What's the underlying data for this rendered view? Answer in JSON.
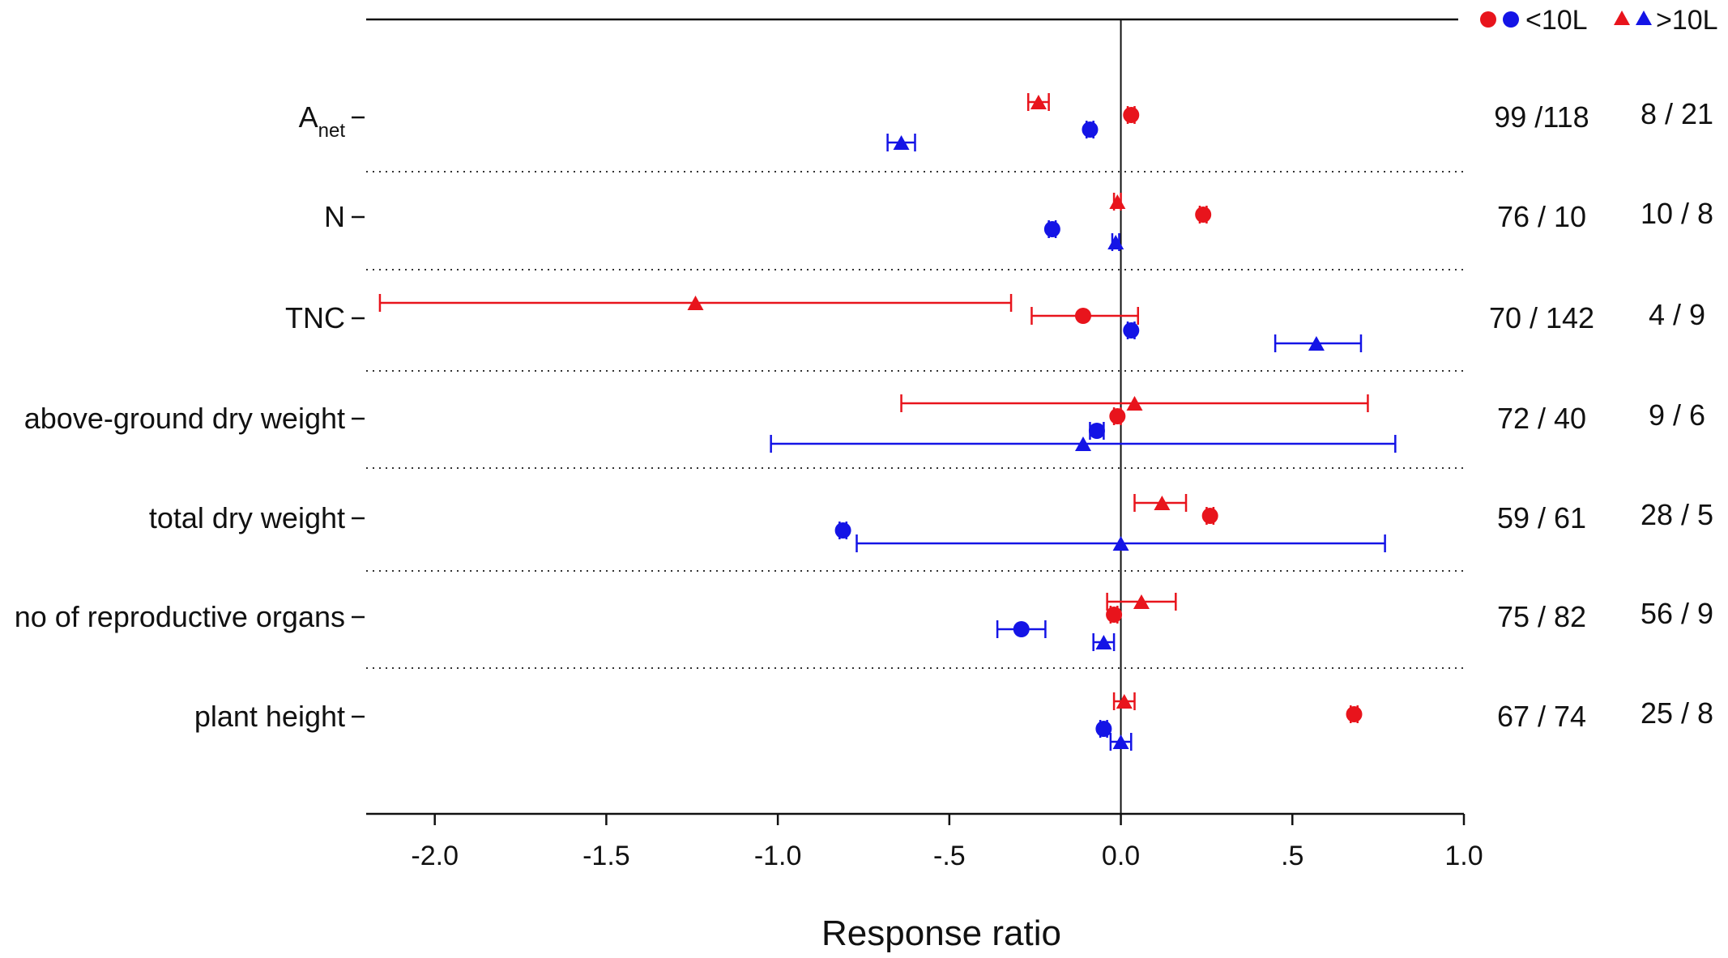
{
  "chart_data": {
    "type": "forest-plot",
    "title": "",
    "xlabel": "Response ratio",
    "ylabel": "",
    "xlim": [
      -2.2,
      1.0
    ],
    "xticks": [
      {
        "value": -2.0,
        "label": "-2.0"
      },
      {
        "value": -1.5,
        "label": "-1.5"
      },
      {
        "value": -1.0,
        "label": "-1.0"
      },
      {
        "value": -0.5,
        "label": "-.5"
      },
      {
        "value": 0.0,
        "label": "0.0"
      },
      {
        "value": 0.5,
        "label": ".5"
      },
      {
        "value": 1.0,
        "label": "1.0"
      }
    ],
    "legend": {
      "position": "top-right",
      "colors": {
        "red": "#e8141c",
        "blue": "#1414e6"
      },
      "entries": [
        {
          "marker": "circle",
          "colors": [
            "red",
            "blue"
          ],
          "label": "<10L"
        },
        {
          "marker": "triangle",
          "colors": [
            "red",
            "blue"
          ],
          "label": ">10L"
        }
      ]
    },
    "categories": [
      {
        "label": "A",
        "subscript": "net",
        "counts_small": "99 /118",
        "counts_large": "8 / 21",
        "series": [
          {
            "marker": "triangle",
            "color": "red",
            "mean": -0.24,
            "lower": -0.27,
            "upper": -0.21
          },
          {
            "marker": "circle",
            "color": "red",
            "mean": 0.03,
            "lower": 0.02,
            "upper": 0.04
          },
          {
            "marker": "circle",
            "color": "blue",
            "mean": -0.09,
            "lower": -0.1,
            "upper": -0.08
          },
          {
            "marker": "triangle",
            "color": "blue",
            "mean": -0.64,
            "lower": -0.68,
            "upper": -0.6
          }
        ]
      },
      {
        "label": "N",
        "subscript": "",
        "counts_small": "76 / 10",
        "counts_large": "10 / 8",
        "series": [
          {
            "marker": "triangle",
            "color": "red",
            "mean": -0.01,
            "lower": -0.02,
            "upper": 0.0
          },
          {
            "marker": "circle",
            "color": "red",
            "mean": 0.24,
            "lower": 0.23,
            "upper": 0.25
          },
          {
            "marker": "circle",
            "color": "blue",
            "mean": -0.2,
            "lower": -0.21,
            "upper": -0.19
          },
          {
            "marker": "triangle",
            "color": "blue",
            "mean": -0.015,
            "lower": -0.025,
            "upper": -0.005
          }
        ]
      },
      {
        "label": "TNC",
        "subscript": "",
        "counts_small": "70 / 142",
        "counts_large": "4 / 9",
        "series": [
          {
            "marker": "triangle",
            "color": "red",
            "mean": -1.24,
            "lower": -2.16,
            "upper": -0.32
          },
          {
            "marker": "circle",
            "color": "red",
            "mean": -0.11,
            "lower": -0.26,
            "upper": 0.05
          },
          {
            "marker": "circle",
            "color": "blue",
            "mean": 0.03,
            "lower": 0.02,
            "upper": 0.04
          },
          {
            "marker": "triangle",
            "color": "blue",
            "mean": 0.57,
            "lower": 0.45,
            "upper": 0.7
          }
        ]
      },
      {
        "label": "above-ground dry weight",
        "subscript": "",
        "counts_small": "72 / 40",
        "counts_large": "9 / 6",
        "series": [
          {
            "marker": "triangle",
            "color": "red",
            "mean": 0.04,
            "lower": -0.64,
            "upper": 0.72
          },
          {
            "marker": "circle",
            "color": "red",
            "mean": -0.01,
            "lower": -0.02,
            "upper": 0.0
          },
          {
            "marker": "circle",
            "color": "blue",
            "mean": -0.07,
            "lower": -0.09,
            "upper": -0.05
          },
          {
            "marker": "triangle",
            "color": "blue",
            "mean": -0.11,
            "lower": -1.02,
            "upper": 0.8
          }
        ]
      },
      {
        "label": "total dry weight",
        "subscript": "",
        "counts_small": "59 / 61",
        "counts_large": "28 / 5",
        "series": [
          {
            "marker": "triangle",
            "color": "red",
            "mean": 0.12,
            "lower": 0.04,
            "upper": 0.19
          },
          {
            "marker": "circle",
            "color": "red",
            "mean": 0.26,
            "lower": 0.25,
            "upper": 0.27
          },
          {
            "marker": "circle",
            "color": "blue",
            "mean": -0.81,
            "lower": -0.82,
            "upper": -0.8
          },
          {
            "marker": "triangle",
            "color": "blue",
            "mean": 0.0,
            "lower": -0.77,
            "upper": 0.77
          }
        ]
      },
      {
        "label": "no of reproductive organs",
        "subscript": "",
        "counts_small": "75 / 82",
        "counts_large": "56 / 9",
        "series": [
          {
            "marker": "triangle",
            "color": "red",
            "mean": 0.06,
            "lower": -0.04,
            "upper": 0.16
          },
          {
            "marker": "circle",
            "color": "red",
            "mean": -0.02,
            "lower": -0.03,
            "upper": -0.01
          },
          {
            "marker": "circle",
            "color": "blue",
            "mean": -0.29,
            "lower": -0.36,
            "upper": -0.22
          },
          {
            "marker": "triangle",
            "color": "blue",
            "mean": -0.05,
            "lower": -0.08,
            "upper": -0.02
          }
        ]
      },
      {
        "label": "plant height",
        "subscript": "",
        "counts_small": "67 / 74",
        "counts_large": "25 / 8",
        "series": [
          {
            "marker": "triangle",
            "color": "red",
            "mean": 0.01,
            "lower": -0.02,
            "upper": 0.04
          },
          {
            "marker": "circle",
            "color": "red",
            "mean": 0.68,
            "lower": 0.67,
            "upper": 0.69
          },
          {
            "marker": "circle",
            "color": "blue",
            "mean": -0.05,
            "lower": -0.06,
            "upper": -0.04
          },
          {
            "marker": "triangle",
            "color": "blue",
            "mean": 0.0,
            "lower": -0.03,
            "upper": 0.03
          }
        ]
      }
    ]
  }
}
